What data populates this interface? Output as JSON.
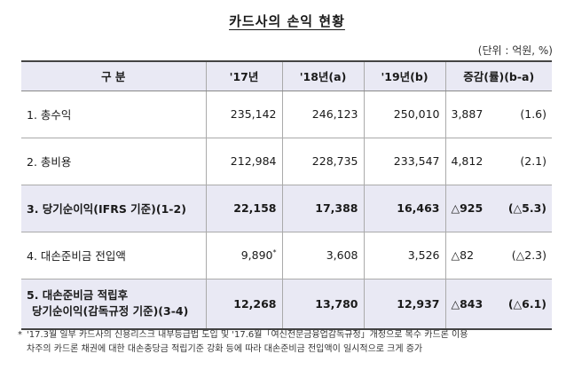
{
  "title": "카드사의 손익 현황",
  "unit": "(단위 : 억원, %)",
  "table": {
    "headers": [
      "구 분",
      "'17년",
      "'18년(a)",
      "'19년(b)",
      "증감(률)(b-a)"
    ],
    "rows": [
      {
        "label": "1. 총수익",
        "y17": "235,142",
        "y18": "246,123",
        "y19": "250,010",
        "chg": "3,887",
        "pct": "(1.6)"
      },
      {
        "label": "2. 총비용",
        "y17": "212,984",
        "y18": "228,735",
        "y19": "233,547",
        "chg": "4,812",
        "pct": "(2.1)"
      },
      {
        "label": "3. 당기순이익(IFRS 기준)(1-2)",
        "y17": "22,158",
        "y18": "17,388",
        "y19": "16,463",
        "chg": "△925",
        "pct": "(△5.3)"
      },
      {
        "label": "4. 대손준비금 전입액",
        "y17": "9,890",
        "y17_note": "*",
        "y18": "3,608",
        "y19": "3,526",
        "chg": "△82",
        "pct": "(△2.3)"
      },
      {
        "label_line1": "5. 대손준비금 적립후",
        "label_line2": "당기순이익(감독규정 기준)(3-4)",
        "y17": "12,268",
        "y18": "13,780",
        "y19": "12,937",
        "chg": "△843",
        "pct": "(△6.1)"
      }
    ]
  },
  "footnote": {
    "mark": "*",
    "line1": "'17.3월 일부 카드사의 신용리스크 내부등급법 도입 및 '17.6월「여신전문금융업감독규정」개정으로 복수 카드론 이용",
    "line2": "차주의 카드론 채권에 대한 대손충당금 적립기준 강화 등에 따라 대손준비금 전입액이 일시적으로 크게 증가"
  }
}
